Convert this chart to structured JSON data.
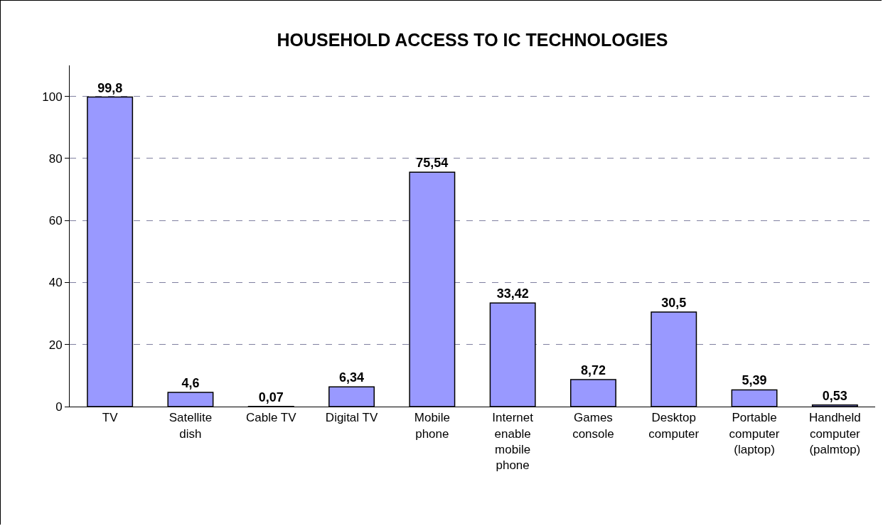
{
  "chart_data": {
    "type": "bar",
    "title": "HOUSEHOLD ACCESS TO IC TECHNOLOGIES",
    "categories": [
      "TV",
      "Satellite dish",
      "Cable TV",
      "Digital TV",
      "Mobile phone",
      "Internet enable mobile phone",
      "Games console",
      "Desktop computer",
      "Portable computer (laptop)",
      "Handheld computer (palmtop)"
    ],
    "values": [
      99.8,
      4.6,
      0.07,
      6.34,
      75.54,
      33.42,
      8.72,
      30.5,
      5.39,
      0.53
    ],
    "value_labels": [
      "99,8",
      "4,6",
      "0,07",
      "6,34",
      "75,54",
      "33,42",
      "8,72",
      "30,5",
      "5,39",
      "0,53"
    ],
    "color": "#9999ff",
    "ylim": [
      0,
      110
    ],
    "yticks": [
      0,
      20,
      40,
      60,
      80,
      100
    ],
    "grid": "y"
  }
}
